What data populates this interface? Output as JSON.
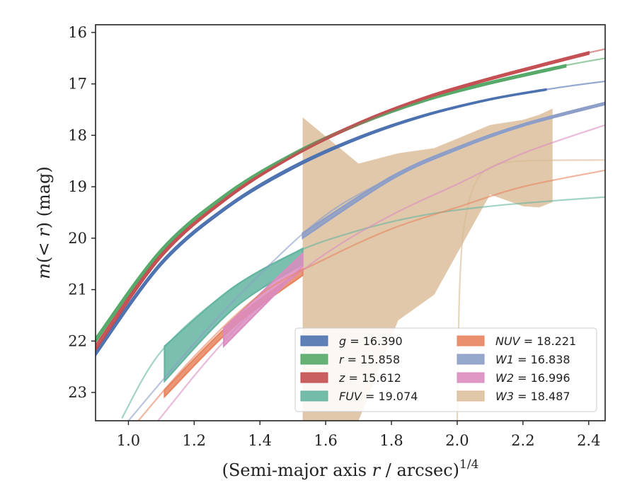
{
  "chart_data": {
    "type": "line",
    "xlabel_text": "(Semi-major axis r / arcsec)",
    "xlabel_var": "r",
    "xlabel_sup": "1/4",
    "ylabel": "m(< r) (mag)",
    "xlim": [
      0.9,
      2.45
    ],
    "ylim": [
      23.55,
      15.85
    ],
    "y_inverted": true,
    "grid": false,
    "legend_position": "lower-right",
    "x_ticks": [
      "1.0",
      "1.2",
      "1.4",
      "1.6",
      "1.8",
      "2.0",
      "2.2",
      "2.4"
    ],
    "y_ticks": [
      "16",
      "17",
      "18",
      "19",
      "20",
      "21",
      "22",
      "23"
    ],
    "series": [
      {
        "name": "g",
        "value": "16.390",
        "color": "#4c72b0",
        "model_x": [
          0.9,
          1.1,
          1.3,
          1.5,
          1.7,
          1.9,
          2.1,
          2.3,
          2.45
        ],
        "model_y": [
          22.25,
          20.5,
          19.4,
          18.63,
          18.05,
          17.62,
          17.3,
          17.08,
          16.95
        ],
        "data_x": [
          0.9,
          1.1,
          1.3,
          1.5,
          1.7,
          1.9,
          2.1,
          2.27
        ],
        "data_upper": [
          22.2,
          20.46,
          19.37,
          18.6,
          18.03,
          17.6,
          17.29,
          17.1
        ],
        "data_lower": [
          22.28,
          20.52,
          19.42,
          18.65,
          18.07,
          17.63,
          17.31,
          17.12
        ]
      },
      {
        "name": "r",
        "value": "15.858",
        "color": "#55a868",
        "model_x": [
          0.9,
          1.1,
          1.3,
          1.5,
          1.7,
          1.9,
          2.1,
          2.3,
          2.45
        ],
        "model_y": [
          22.0,
          20.25,
          19.15,
          18.38,
          17.78,
          17.32,
          16.98,
          16.68,
          16.5
        ],
        "data_x": [
          0.9,
          1.1,
          1.3,
          1.5,
          1.7,
          1.9,
          2.1,
          2.33
        ],
        "data_upper": [
          21.94,
          20.21,
          19.12,
          18.35,
          17.76,
          17.3,
          16.96,
          16.63
        ],
        "data_lower": [
          22.02,
          20.27,
          19.17,
          18.4,
          17.8,
          17.34,
          17.0,
          16.67
        ]
      },
      {
        "name": "z",
        "value": "15.612",
        "color": "#c44e52",
        "model_x": [
          0.9,
          1.1,
          1.3,
          1.5,
          1.7,
          1.9,
          2.1,
          2.3,
          2.45
        ],
        "model_y": [
          22.15,
          20.35,
          19.22,
          18.4,
          17.77,
          17.28,
          16.9,
          16.55,
          16.32
        ],
        "data_x": [
          0.9,
          1.1,
          1.3,
          1.5,
          1.7,
          1.9,
          2.1,
          2.4
        ],
        "data_upper": [
          22.08,
          20.31,
          19.2,
          18.38,
          17.75,
          17.26,
          16.88,
          16.38
        ],
        "data_lower": [
          22.18,
          20.37,
          19.24,
          18.42,
          17.79,
          17.3,
          16.92,
          16.42
        ]
      },
      {
        "name": "FUV",
        "value": "19.074",
        "color": "#64b5a0",
        "model_x": [
          0.98,
          1.1,
          1.3,
          1.5,
          1.7,
          1.9,
          2.1,
          2.3,
          2.45
        ],
        "model_y": [
          23.5,
          22.2,
          21.05,
          20.3,
          19.85,
          19.55,
          19.38,
          19.27,
          19.2
        ],
        "data_x": [
          1.11,
          1.32,
          1.53
        ],
        "data_upper": [
          22.1,
          20.95,
          20.2
        ],
        "data_lower": [
          22.78,
          21.37,
          20.5
        ]
      },
      {
        "name": "NUV",
        "value": "18.221",
        "color": "#e8845f",
        "model_x": [
          1.03,
          1.2,
          1.4,
          1.6,
          1.8,
          2.0,
          2.2,
          2.45
        ],
        "model_y": [
          23.55,
          22.3,
          21.1,
          20.4,
          19.82,
          19.4,
          19.0,
          18.68
        ],
        "data_x": [
          1.11,
          1.32,
          1.53
        ],
        "data_upper": [
          22.95,
          21.6,
          20.6
        ],
        "data_lower": [
          23.08,
          21.72,
          20.72
        ]
      },
      {
        "name": "W1",
        "value": "16.838",
        "color": "#8c9ec8",
        "model_x": [
          1.0,
          1.2,
          1.4,
          1.6,
          1.8,
          2.0,
          2.2,
          2.45
        ],
        "model_y": [
          23.55,
          22.05,
          20.7,
          19.55,
          18.82,
          18.25,
          17.8,
          17.38
        ],
        "data_x": [
          1.53,
          1.8,
          2.0,
          2.2,
          2.45
        ],
        "data_upper": [
          19.9,
          18.8,
          18.23,
          17.78,
          17.36
        ],
        "data_lower": [
          20.0,
          18.86,
          18.28,
          17.82,
          17.4
        ]
      },
      {
        "name": "W2",
        "value": "16.996",
        "color": "#db8cc0",
        "model_x": [
          1.09,
          1.25,
          1.4,
          1.6,
          1.8,
          2.0,
          2.2,
          2.45
        ],
        "model_y": [
          23.55,
          22.3,
          21.3,
          20.3,
          19.55,
          18.95,
          18.35,
          17.8
        ],
        "data_x": [
          1.29,
          1.53
        ],
        "data_upper": [
          21.75,
          20.3
        ],
        "data_lower": [
          22.1,
          20.55
        ]
      },
      {
        "name": "W3",
        "value": "18.487",
        "color": "#d9b993",
        "model_x": [
          2.0,
          2.005,
          2.01,
          2.02,
          2.05,
          2.1,
          2.2,
          2.45
        ],
        "model_y": [
          23.55,
          21.5,
          20.6,
          19.8,
          19.0,
          18.62,
          18.5,
          18.48
        ],
        "data_x": [
          1.53,
          1.7,
          1.82,
          1.93,
          2.1,
          2.2,
          2.25,
          2.29
        ],
        "data_upper": [
          17.65,
          18.55,
          18.35,
          18.25,
          17.8,
          17.7,
          17.6,
          17.48
        ],
        "data_lower": [
          23.55,
          23.55,
          21.6,
          21.1,
          19.15,
          19.38,
          19.4,
          19.3
        ]
      }
    ]
  }
}
